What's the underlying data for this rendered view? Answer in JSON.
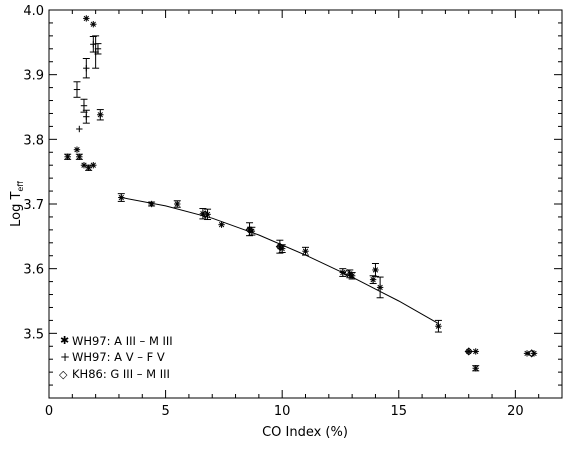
{
  "chart_data": {
    "type": "scatter",
    "title": "",
    "xlabel": "CO Index (%)",
    "ylabel_main": "Log T",
    "ylabel_sub": "eff",
    "xlim": [
      0,
      22
    ],
    "ylim": [
      3.4,
      4.0
    ],
    "x_ticks": [
      0,
      5,
      10,
      15,
      20
    ],
    "x_tick_labels": [
      "0",
      "5",
      "10",
      "15",
      "20"
    ],
    "y_ticks": [
      3.5,
      3.6,
      3.7,
      3.8,
      3.9,
      4.0
    ],
    "y_tick_labels": [
      "3.5",
      "3.6",
      "3.7",
      "3.8",
      "3.9",
      "4.0"
    ],
    "grid": false,
    "legend_position": "bottom-left",
    "series": [
      {
        "name": "WH97: A III – M III",
        "marker": "asterisk",
        "points": [
          {
            "x": 1.6,
            "y": 3.987,
            "err": 0.0
          },
          {
            "x": 1.9,
            "y": 3.978,
            "err": 0.0
          },
          {
            "x": 2.2,
            "y": 3.838,
            "err": 0.008
          },
          {
            "x": 1.2,
            "y": 3.784,
            "err": 0.0
          },
          {
            "x": 0.8,
            "y": 3.773,
            "err": 0.004
          },
          {
            "x": 1.3,
            "y": 3.773,
            "err": 0.004
          },
          {
            "x": 1.5,
            "y": 3.76,
            "err": 0.0
          },
          {
            "x": 1.9,
            "y": 3.76,
            "err": 0.0
          },
          {
            "x": 1.7,
            "y": 3.756,
            "err": 0.004
          },
          {
            "x": 3.1,
            "y": 3.71,
            "err": 0.006
          },
          {
            "x": 4.4,
            "y": 3.7,
            "err": 0.003
          },
          {
            "x": 5.5,
            "y": 3.7,
            "err": 0.005
          },
          {
            "x": 6.6,
            "y": 3.685,
            "err": 0.008
          },
          {
            "x": 6.8,
            "y": 3.684,
            "err": 0.008
          },
          {
            "x": 7.4,
            "y": 3.668,
            "err": 0.0
          },
          {
            "x": 8.6,
            "y": 3.661,
            "err": 0.01
          },
          {
            "x": 8.7,
            "y": 3.658,
            "err": 0.006
          },
          {
            "x": 9.9,
            "y": 3.634,
            "err": 0.01
          },
          {
            "x": 10.0,
            "y": 3.631,
            "err": 0.006
          },
          {
            "x": 11.0,
            "y": 3.627,
            "err": 0.006
          },
          {
            "x": 12.6,
            "y": 3.594,
            "err": 0.006
          },
          {
            "x": 12.9,
            "y": 3.592,
            "err": 0.006
          },
          {
            "x": 13.0,
            "y": 3.589,
            "err": 0.005
          },
          {
            "x": 14.0,
            "y": 3.598,
            "err": 0.01
          },
          {
            "x": 13.9,
            "y": 3.583,
            "err": 0.006
          },
          {
            "x": 14.2,
            "y": 3.571,
            "err": 0.016
          },
          {
            "x": 16.7,
            "y": 3.511,
            "err": 0.009
          },
          {
            "x": 18.0,
            "y": 3.472,
            "err": 0.0
          },
          {
            "x": 18.3,
            "y": 3.472,
            "err": 0.0
          },
          {
            "x": 18.3,
            "y": 3.446,
            "err": 0.004
          },
          {
            "x": 20.5,
            "y": 3.469,
            "err": 0.0
          },
          {
            "x": 20.8,
            "y": 3.469,
            "err": 0.0
          }
        ]
      },
      {
        "name": "WH97: A V – F V",
        "marker": "plus",
        "points": [
          {
            "x": 1.2,
            "y": 3.877,
            "err": 0.012
          },
          {
            "x": 1.3,
            "y": 3.816,
            "err": 0.0
          },
          {
            "x": 1.5,
            "y": 3.852,
            "err": 0.01
          },
          {
            "x": 1.6,
            "y": 3.835,
            "err": 0.01
          },
          {
            "x": 1.6,
            "y": 3.91,
            "err": 0.015
          },
          {
            "x": 1.9,
            "y": 3.947,
            "err": 0.012
          },
          {
            "x": 2.0,
            "y": 3.935,
            "err": 0.025
          },
          {
            "x": 2.1,
            "y": 3.94,
            "err": 0.008
          }
        ]
      },
      {
        "name": "KH86: G III – M III",
        "marker": "diamond",
        "points": [
          {
            "x": 6.7,
            "y": 3.684,
            "err": 0.0
          },
          {
            "x": 8.6,
            "y": 3.66,
            "err": 0.0
          },
          {
            "x": 9.9,
            "y": 3.634,
            "err": 0.0
          },
          {
            "x": 12.8,
            "y": 3.593,
            "err": 0.0
          },
          {
            "x": 18.0,
            "y": 3.472,
            "err": 0.0
          },
          {
            "x": 20.7,
            "y": 3.469,
            "err": 0.0
          }
        ]
      }
    ],
    "fit_line": {
      "x": [
        3.1,
        5.0,
        7.0,
        9.0,
        11.0,
        13.0,
        15.0,
        16.7
      ],
      "y": [
        3.71,
        3.697,
        3.678,
        3.652,
        3.621,
        3.587,
        3.55,
        3.515
      ]
    }
  },
  "legend": {
    "items": [
      {
        "symbol": "✱",
        "label": "WH97: A III – M III"
      },
      {
        "symbol": "+",
        "label": "WH97: A V – F V"
      },
      {
        "symbol": "◇",
        "label": "KH86: G III – M III"
      }
    ]
  }
}
